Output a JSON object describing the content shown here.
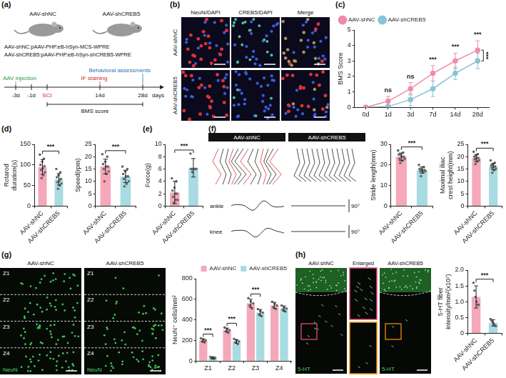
{
  "schematic": {
    "letter": "(a)",
    "mice": [
      "AAV-shNC",
      "AAV-shCREB5"
    ],
    "constructs": [
      "AAV-shNC:pAAV-PHP.eB-hSyn-MCS-WPRE",
      "AAV-shCREB5:pAAV-PHP.eB-hSyn-shCREB5-WPRE"
    ],
    "timeline": {
      "marks": [
        "-3d",
        "-1d",
        "SCI",
        "14d",
        "28d"
      ],
      "events": [
        {
          "mark": "-3d",
          "text": "AAV injection"
        },
        {
          "mark": "14d",
          "text": "IF staining"
        },
        {
          "mark": "28d",
          "text": "Behavioral assessments"
        }
      ],
      "axis_label": "days",
      "span": {
        "from": "SCI",
        "to": "28d",
        "text": "BMS score"
      }
    }
  },
  "staining": {
    "letter": "(b)",
    "columns": [
      "NeuN/DAPI",
      "CREB5/DAPI",
      "Merge"
    ],
    "rows": [
      "AAV-shNC",
      "AAV-shCREB5"
    ]
  },
  "gait": {
    "letter": "(f)",
    "groups": [
      "AAV-shNC",
      "AAV-shCREB5"
    ],
    "traces": [
      "ankle",
      "knee"
    ],
    "trace_scale": "90°"
  },
  "sections": {
    "letter": "(g)",
    "groups": [
      "AAV-shNC",
      "AAV-shCREB5"
    ],
    "zones": [
      "Z1",
      "Z2",
      "Z3",
      "Z4"
    ],
    "stain": "NeuN"
  },
  "fibers": {
    "letter": "(h)",
    "images": [
      "AAV-shNC",
      "Enlarged",
      "AAV-shCREB5"
    ],
    "stain": "5-HT"
  },
  "chart_data": [
    {
      "letter": "(c)",
      "type": "line",
      "categories": [
        "0d",
        "1d",
        "3d",
        "7d",
        "14d",
        "28d"
      ],
      "y_label": "BMS Score",
      "ylim": [
        0,
        5
      ],
      "yticks": [
        0,
        1,
        2,
        3,
        4,
        5
      ],
      "grid": false,
      "legend": "top-left",
      "marker": "circle",
      "series": [
        {
          "name": "AAV-shNC",
          "color": "#f08ca8",
          "values": [
            0,
            0.4,
            1.2,
            2.2,
            3.0,
            3.7
          ],
          "errors": [
            0,
            0.3,
            0.4,
            0.5,
            0.5,
            0.6
          ]
        },
        {
          "name": "AAV-shCREB5",
          "color": "#86c5d6",
          "values": [
            0,
            0.05,
            0.5,
            1.2,
            2.2,
            3.0
          ],
          "errors": [
            0,
            0.1,
            0.4,
            0.5,
            0.4,
            0.5
          ]
        }
      ],
      "significance": [
        null,
        "ns",
        "ns",
        "***",
        "***",
        "***"
      ],
      "summary_significance": "***"
    },
    {
      "letter": "(d)",
      "type": "bar",
      "categories": [
        "AAV-shNC",
        "AAV-shCREB5"
      ],
      "y_label": "Rotarod duration(s)",
      "ylim": [
        0,
        150
      ],
      "yticks": [
        0,
        50,
        100,
        150
      ],
      "grid": false,
      "colors": [
        "#f5a8ba",
        "#a8dbe2"
      ],
      "values": [
        95,
        65
      ],
      "errors": [
        18,
        14
      ],
      "points": [
        [
          125,
          115,
          108,
          100,
          97,
          92,
          88,
          82,
          75,
          68
        ],
        [
          90,
          82,
          75,
          70,
          66,
          62,
          58,
          55,
          50,
          42
        ]
      ],
      "significance": "***"
    },
    {
      "type": "bar",
      "categories": [
        "AAV-shNC",
        "AAV-shCREB5"
      ],
      "y_label": "Speed(rpm)",
      "ylim": [
        0,
        25
      ],
      "yticks": [
        0,
        5,
        10,
        15,
        20,
        25
      ],
      "grid": false,
      "colors": [
        "#f5a8ba",
        "#a8dbe2"
      ],
      "values": [
        16,
        12
      ],
      "errors": [
        3,
        2.5
      ],
      "points": [
        [
          21,
          20,
          18,
          17,
          16,
          16,
          15,
          14,
          13,
          10
        ],
        [
          16,
          15,
          14,
          13,
          12,
          12,
          11,
          10,
          9,
          8
        ]
      ],
      "significance": "***"
    },
    {
      "letter": "(e)",
      "type": "bar",
      "categories": [
        "AAV-shNC",
        "AAV-shCREB5"
      ],
      "y_label": "Force(g)",
      "ylim": [
        0,
        10
      ],
      "yticks": [
        0,
        2,
        4,
        6,
        8,
        10
      ],
      "grid": false,
      "colors": [
        "#f5a8ba",
        "#a8dbe2"
      ],
      "values": [
        2.2,
        6.2
      ],
      "errors": [
        1.8,
        1.5
      ],
      "points": [
        [
          4.5,
          4,
          3,
          2.5,
          2,
          2,
          1.5,
          1,
          1,
          0.5
        ],
        [
          8.5,
          6,
          6,
          6,
          6,
          6,
          6,
          6,
          6,
          5.5
        ]
      ],
      "significance": "***"
    },
    {
      "type": "bar",
      "categories": [
        "AAV-shNC",
        "AAV-shCREB5"
      ],
      "y_label": "Stride length(mm)",
      "ylim": [
        0,
        30
      ],
      "yticks": [
        0,
        10,
        20,
        30
      ],
      "grid": false,
      "colors": [
        "#f5a8ba",
        "#a8dbe2"
      ],
      "values": [
        24,
        17.5
      ],
      "errors": [
        1.8,
        1.5
      ],
      "points": [
        [
          27,
          26,
          25,
          25,
          24,
          24,
          23,
          23,
          22,
          21
        ],
        [
          20,
          19,
          18,
          18,
          17.5,
          17.5,
          17,
          17,
          16.5,
          14.5
        ]
      ],
      "significance": "***"
    },
    {
      "type": "bar",
      "categories": [
        "AAV-shNC",
        "AAV-shCREB5"
      ],
      "y_label": "Maximal iliac crest height(mm)",
      "ylim": [
        0,
        25
      ],
      "yticks": [
        0,
        5,
        10,
        15,
        20,
        25
      ],
      "grid": false,
      "colors": [
        "#f5a8ba",
        "#a8dbe2"
      ],
      "values": [
        19.5,
        16
      ],
      "errors": [
        1.4,
        1.3
      ],
      "points": [
        [
          22,
          21,
          20.5,
          20,
          19.5,
          19.5,
          19,
          18.5,
          18,
          17
        ],
        [
          18.5,
          17.5,
          17,
          16.5,
          16,
          16,
          15.5,
          15,
          14.5,
          13.5
        ]
      ],
      "significance": "***"
    },
    {
      "type": "bar",
      "categories": [
        "Z1",
        "Z2",
        "Z3",
        "Z4"
      ],
      "y_label": "NeuN⁺ cells/mm²",
      "ylim": [
        0,
        800
      ],
      "yticks": [
        0,
        200,
        400,
        600,
        800
      ],
      "grid": false,
      "legend": "top-right",
      "series": [
        {
          "name": "AAV-shNC",
          "color": "#f5a8ba",
          "values": [
            200,
            300,
            560,
            540
          ],
          "errors": [
            15,
            20,
            40,
            30
          ],
          "points": [
            [
              220,
              210,
              200,
              190,
              180
            ],
            [
              325,
              310,
              300,
              290,
              275
            ],
            [
              610,
              580,
              560,
              540,
              510
            ],
            [
              575,
              555,
              540,
              525,
              505
            ]
          ]
        },
        {
          "name": "AAV-shCREB5",
          "color": "#a8dbe2",
          "values": [
            30,
            190,
            470,
            510
          ],
          "errors": [
            8,
            18,
            30,
            25
          ],
          "points": [
            [
              40,
              35,
              30,
              25,
              20
            ],
            [
              215,
              200,
              190,
              180,
              165
            ],
            [
              505,
              485,
              470,
              455,
              435
            ],
            [
              540,
              520,
              510,
              500,
              480
            ]
          ]
        }
      ],
      "significance": [
        "***",
        "***",
        "***",
        null
      ]
    },
    {
      "type": "bar",
      "categories": [
        "AAV-shNC",
        "AAV-shCREB5"
      ],
      "y_label": "5-HT fiber intensity/mm²(x10⁷)",
      "ylim": [
        0,
        2
      ],
      "yticks": [
        0,
        0.5,
        {
          "value": 1,
          "label": "1.0"
        },
        1.5,
        {
          "value": 2,
          "label": "2.0"
        }
      ],
      "grid": false,
      "colors": [
        "#f5a8ba",
        "#a8dbe2"
      ],
      "values": [
        1.15,
        0.33
      ],
      "errors": [
        0.35,
        0.1
      ],
      "points": [
        [
          1.6,
          1.35,
          1.15,
          1.0,
          0.9,
          0.9
        ],
        [
          0.45,
          0.4,
          0.35,
          0.3,
          0.25,
          0.23
        ]
      ],
      "significance": "***"
    }
  ]
}
